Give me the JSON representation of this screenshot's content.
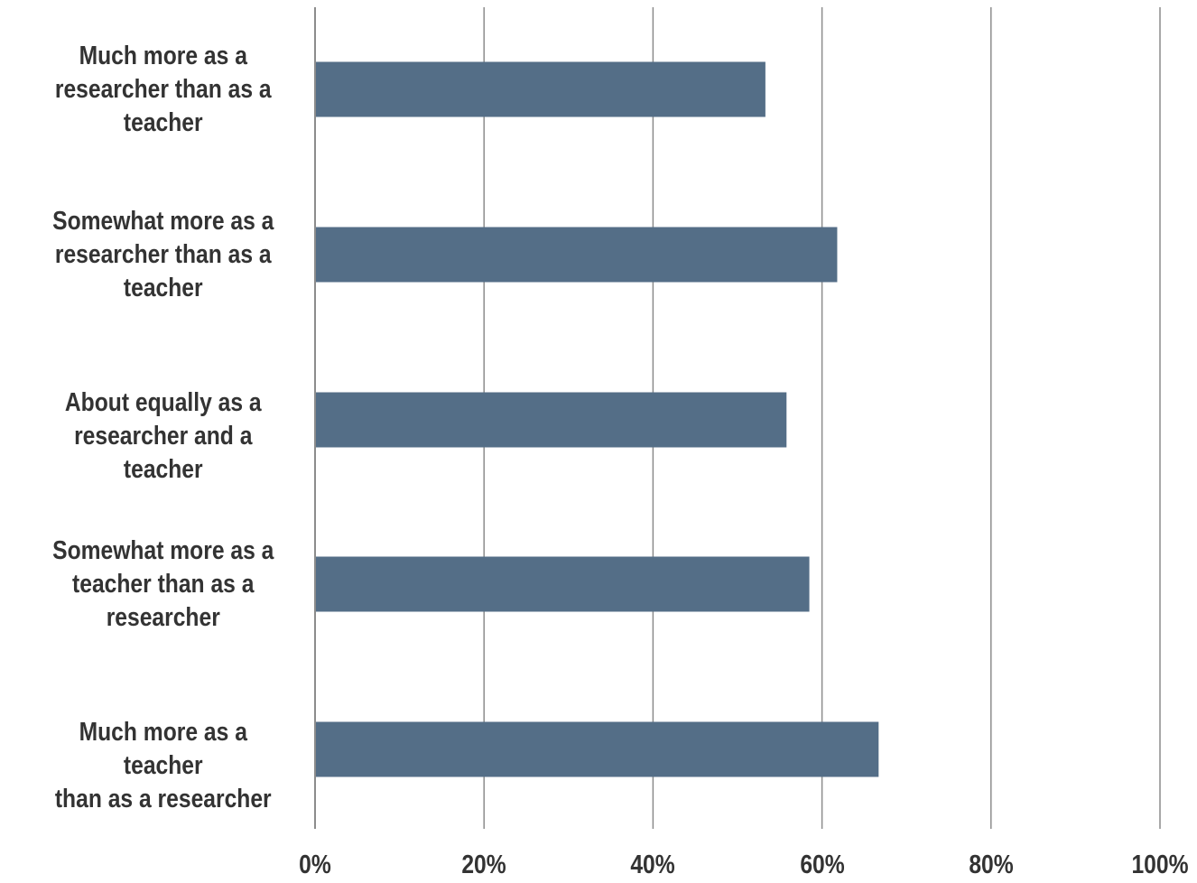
{
  "chart_data": {
    "type": "bar",
    "orientation": "horizontal",
    "categories": [
      "Much more as a researcher than as a teacher",
      "Somewhat more as a researcher than as a teacher",
      "About equally as a researcher and a teacher",
      "Somewhat more as a teacher than as a researcher",
      "Much more as a teacher than as a researcher"
    ],
    "category_lines": [
      [
        "Much more as a",
        "researcher than as a",
        "teacher"
      ],
      [
        "Somewhat more as a",
        "researcher than as a",
        "teacher"
      ],
      [
        "About equally as a",
        "researcher and a teacher"
      ],
      [
        "Somewhat more as a",
        "teacher than as a",
        "researcher"
      ],
      [
        "Much more as a teacher",
        "than as a researcher"
      ]
    ],
    "values": [
      53.3,
      61.8,
      55.8,
      58.5,
      66.7
    ],
    "x_ticks": [
      "0%",
      "20%",
      "40%",
      "60%",
      "80%",
      "100%"
    ],
    "xlim": [
      0,
      100
    ],
    "grid": true,
    "bar_color": "#546e87",
    "grid_color": "#8c8c8c",
    "title": "",
    "xlabel": "",
    "ylabel": ""
  }
}
